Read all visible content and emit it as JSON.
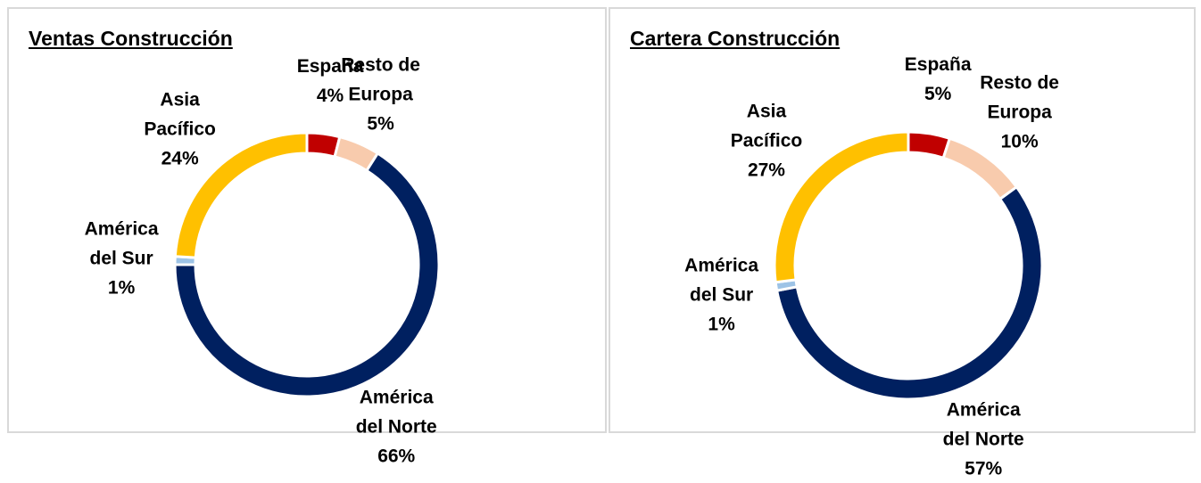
{
  "chart_data": [
    {
      "type": "pie",
      "title": "Ventas Construcción",
      "categories": [
        "España",
        "Resto de Europa",
        "América del Norte",
        "América del Sur",
        "Asia Pacífico"
      ],
      "values": [
        4,
        5,
        66,
        1,
        24
      ],
      "value_labels": [
        "4%",
        "5%",
        "66%",
        "1%",
        "24%"
      ],
      "colors": [
        "#c00000",
        "#f8cbad",
        "#002060",
        "#9dc3e6",
        "#ffc000"
      ]
    },
    {
      "type": "pie",
      "title": "Cartera Construcción",
      "categories": [
        "España",
        "Resto de Europa",
        "América del Norte",
        "América del Sur",
        "Asia Pacífico"
      ],
      "values": [
        5,
        10,
        57,
        1,
        27
      ],
      "value_labels": [
        "5%",
        "10%",
        "57%",
        "1%",
        "27%"
      ],
      "colors": [
        "#c00000",
        "#f8cbad",
        "#002060",
        "#9dc3e6",
        "#ffc000"
      ]
    }
  ]
}
